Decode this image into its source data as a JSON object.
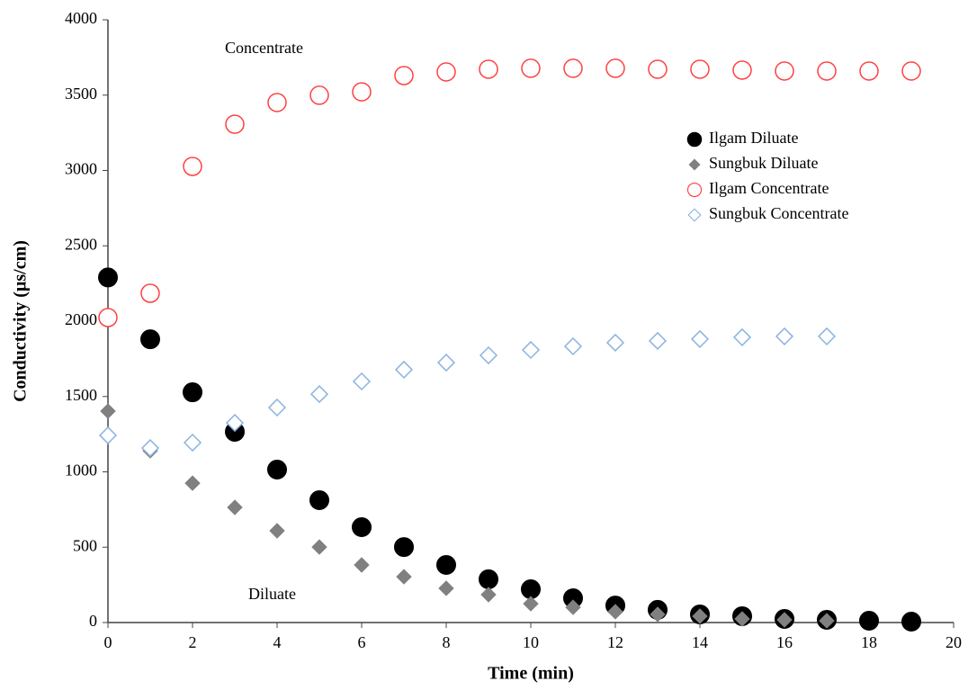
{
  "chart_data": {
    "type": "scatter",
    "xlabel": "Time (min)",
    "ylabel": "Conductivity (µs/cm)",
    "annotations": [
      "Concentrate",
      "Diluate"
    ],
    "xlim": [
      0,
      20
    ],
    "xticks": [
      0,
      2,
      4,
      6,
      8,
      10,
      12,
      14,
      16,
      18,
      20
    ],
    "ylim": [
      0,
      4000
    ],
    "yticks": [
      0,
      500,
      1000,
      1500,
      2000,
      2500,
      3000,
      3500,
      4000
    ],
    "legend": "right",
    "series": [
      {
        "name": "Ilgam Diluate",
        "color": "#000000",
        "marker": "circle",
        "filled": true,
        "x": [
          0,
          1,
          2,
          3,
          4,
          5,
          6,
          7,
          8,
          9,
          10,
          11,
          12,
          13,
          14,
          15,
          16,
          17,
          18,
          19
        ],
        "values": [
          2290,
          1880,
          1528,
          1266,
          1015,
          812,
          633,
          501,
          382,
          287,
          221,
          161,
          113,
          84,
          54,
          42,
          24,
          18,
          12,
          6
        ]
      },
      {
        "name": "Sungbuk Diluate",
        "color": "#808080",
        "marker": "diamond",
        "filled": true,
        "x": [
          0,
          1,
          2,
          3,
          4,
          5,
          6,
          7,
          8,
          9,
          10,
          11,
          12,
          13,
          14,
          15,
          16,
          17
        ],
        "values": [
          1403,
          1140,
          925,
          764,
          609,
          501,
          382,
          304,
          227,
          185,
          125,
          101,
          72,
          54,
          42,
          24,
          18,
          12
        ]
      },
      {
        "name": "Ilgam Concentrate",
        "color": "#ff4040",
        "marker": "circle",
        "filled": false,
        "x": [
          0,
          1,
          2,
          3,
          4,
          5,
          6,
          7,
          8,
          9,
          10,
          11,
          12,
          13,
          14,
          15,
          16,
          17,
          18,
          19
        ],
        "values": [
          2024,
          2185,
          3027,
          3307,
          3451,
          3499,
          3522,
          3630,
          3654,
          3672,
          3678,
          3678,
          3678,
          3672,
          3672,
          3666,
          3660,
          3660,
          3660,
          3660
        ]
      },
      {
        "name": "Sungbuk Concentrate",
        "color": "#8ab4e0",
        "marker": "diamond",
        "filled": false,
        "x": [
          0,
          1,
          2,
          3,
          4,
          5,
          6,
          7,
          8,
          9,
          10,
          11,
          12,
          13,
          14,
          15,
          16,
          17
        ],
        "values": [
          1242,
          1158,
          1194,
          1325,
          1427,
          1516,
          1600,
          1678,
          1725,
          1773,
          1809,
          1833,
          1857,
          1869,
          1881,
          1893,
          1899,
          1899
        ]
      }
    ]
  }
}
